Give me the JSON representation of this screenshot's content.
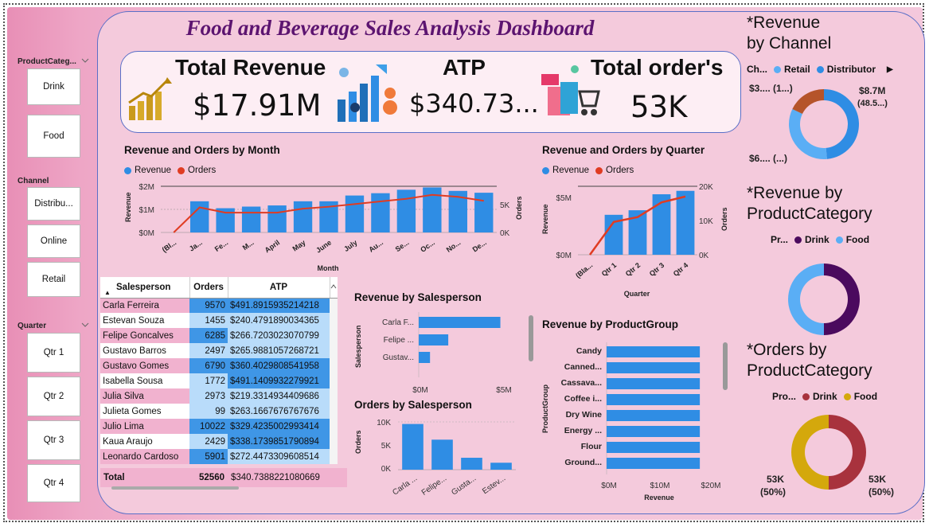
{
  "title": "Food and Beverage Sales Analysis Dashboard",
  "kpis": {
    "revenue_label": "Total Revenue",
    "revenue_value": "$17.91M",
    "atp_label": "ATP",
    "atp_value": "$340.73...",
    "orders_label": "Total order's",
    "orders_value": "53K"
  },
  "slicers": {
    "product_category": {
      "title": "ProductCateg...",
      "items": [
        "Drink",
        "Food"
      ]
    },
    "channel": {
      "title": "Channel",
      "items": [
        "Distribu...",
        "Online",
        "Retail"
      ]
    },
    "quarter": {
      "title": "Quarter",
      "items": [
        "Qtr 1",
        "Qtr 2",
        "Qtr 3",
        "Qtr 4"
      ]
    }
  },
  "month_chart": {
    "title": "Revenue and Orders by Month",
    "legend": [
      "Revenue",
      "Orders"
    ],
    "xlabel": "Month",
    "ylabel_left": "Revenue",
    "ylabel_right": "Orders",
    "left_ticks": [
      "$2M",
      "$1M",
      "$0M"
    ],
    "right_ticks": [
      "5K",
      "0K"
    ]
  },
  "quarter_chart": {
    "title": "Revenue and Orders by Quarter",
    "legend": [
      "Revenue",
      "Orders"
    ],
    "xlabel": "Quarter",
    "ylabel_left": "Revenue",
    "ylabel_right": "Orders",
    "left_ticks": [
      "$5M",
      "$0M"
    ],
    "right_ticks": [
      "20K",
      "10K",
      "0K"
    ]
  },
  "table": {
    "headers": [
      "Salesperson",
      "Orders",
      "ATP"
    ],
    "rows": [
      [
        "Carla Ferreira",
        "9570",
        "$491.8915935214218"
      ],
      [
        "Estevan Souza",
        "1455",
        "$240.4791890034365"
      ],
      [
        "Felipe Goncalves",
        "6285",
        "$266.7203023070799"
      ],
      [
        "Gustavo Barros",
        "2497",
        "$265.9881057268721"
      ],
      [
        "Gustavo Gomes",
        "6790",
        "$360.4029808541958"
      ],
      [
        "Isabella Sousa",
        "1772",
        "$491.1409932279921"
      ],
      [
        "Julia Silva",
        "2973",
        "$219.3314934409686"
      ],
      [
        "Julieta Gomes",
        "99",
        "$263.1667676767676"
      ],
      [
        "Julio Lima",
        "10022",
        "$329.4235002993414"
      ],
      [
        "Kaua Araujo",
        "2429",
        "$338.1739851790894"
      ],
      [
        "Leonardo Cardoso",
        "5901",
        "$272.4473309608514"
      ]
    ],
    "total": [
      "Total",
      "52560",
      "$340.7388221080669"
    ]
  },
  "rev_salesperson": {
    "title": "Revenue by Salesperson",
    "ylabel": "Salesperson",
    "categories": [
      "Carla F...",
      "Felipe ...",
      "Gustav..."
    ],
    "ticks": [
      "$0M",
      "$5M"
    ]
  },
  "orders_salesperson": {
    "title": "Orders by Salesperson",
    "ylabel": "Orders",
    "categories": [
      "Carla ...",
      "Felipe...",
      "Gusta...",
      "Estev..."
    ],
    "ticks": [
      "10K",
      "5K",
      "0K"
    ]
  },
  "product_group": {
    "title": "Revenue by ProductGroup",
    "ylabel": "ProductGroup",
    "xlabel": "Revenue",
    "categories": [
      "Candy",
      "Canned...",
      "Cassava...",
      "Coffee i...",
      "Dry Wine",
      "Energy ...",
      "Flour",
      "Ground..."
    ],
    "ticks": [
      "$0M",
      "$10M",
      "$20M"
    ]
  },
  "channel_donut": {
    "title": "*Revenue by Channel",
    "legend_prefix": "Ch...",
    "legend": [
      "Retail",
      "Distributor"
    ],
    "labels": [
      "$8.7M",
      "(48.5...)",
      "$3.... (1...)",
      "$6.... (...)"
    ]
  },
  "category_donut": {
    "title": "*Revenue by ProductCategory",
    "legend_prefix": "Pr...",
    "legend": [
      "Drink",
      "Food"
    ]
  },
  "orders_donut": {
    "title": "*Orders by ProductCategory",
    "legend_prefix": "Pro...",
    "legend": [
      "Drink",
      "Food"
    ],
    "labels": [
      "53K",
      "(50%)",
      "53K",
      "(50%)"
    ]
  },
  "colors": {
    "revenue": "#2f8de4",
    "orders": "#e03c22",
    "drink": "#4b0a5e",
    "food": "#5aaef5",
    "drink_orders": "#a8323d",
    "food_orders": "#d4a80c",
    "retail_slice": "#b5542a"
  },
  "chart_data": [
    {
      "type": "bar",
      "title": "Revenue and Orders by Month",
      "categories": [
        "(Bl...",
        "Ja...",
        "Fe...",
        "M...",
        "April",
        "May",
        "June",
        "July",
        "Au...",
        "Se...",
        "Oc...",
        "No...",
        "De..."
      ],
      "series": [
        {
          "name": "Revenue",
          "values": [
            0,
            1.35,
            1.05,
            1.12,
            1.17,
            1.35,
            1.35,
            1.6,
            1.7,
            1.85,
            1.95,
            1.8,
            1.72
          ]
        },
        {
          "name": "Orders",
          "values": [
            0,
            3800,
            3000,
            3000,
            3000,
            3600,
            3900,
            4300,
            4700,
            5100,
            5700,
            5400,
            4800
          ]
        }
      ],
      "xlabel": "Month",
      "ylabel": "Revenue",
      "ylim": [
        0,
        2
      ],
      "y2lim": [
        0,
        7000
      ]
    },
    {
      "type": "bar",
      "title": "Revenue and Orders by Quarter",
      "categories": [
        "(Bla...",
        "Qtr 1",
        "Qtr 2",
        "Qtr 3",
        "Qtr 4"
      ],
      "series": [
        {
          "name": "Revenue",
          "values": [
            0,
            3.5,
            3.9,
            5.3,
            5.6
          ]
        },
        {
          "name": "Orders",
          "values": [
            0,
            9600,
            11000,
            15300,
            17000
          ]
        }
      ],
      "xlabel": "Quarter",
      "ylabel": "Revenue",
      "ylim": [
        0,
        6
      ],
      "y2lim": [
        0,
        20000
      ]
    },
    {
      "type": "bar",
      "title": "Revenue by Salesperson",
      "categories": [
        "Carla F...",
        "Felipe ...",
        "Gustav..."
      ],
      "values": [
        4.7,
        1.7,
        0.65
      ],
      "xlim": [
        0,
        5.5
      ]
    },
    {
      "type": "bar",
      "title": "Orders by Salesperson",
      "categories": [
        "Carla ...",
        "Felipe...",
        "Gusta...",
        "Estev..."
      ],
      "values": [
        9570,
        6285,
        2497,
        1455
      ],
      "ylim": [
        0,
        10000
      ]
    },
    {
      "type": "bar",
      "title": "Revenue by ProductGroup",
      "categories": [
        "Candy",
        "Canned...",
        "Cassava...",
        "Coffee i...",
        "Dry Wine",
        "Energy ...",
        "Flour",
        "Ground..."
      ],
      "values": [
        18.3,
        18.3,
        18.3,
        18.3,
        18.3,
        18.3,
        18.3,
        18.3
      ],
      "xlim": [
        0,
        20
      ]
    },
    {
      "type": "pie",
      "title": "*Revenue by Channel",
      "categories": [
        "Distributor",
        "Online",
        "Retail"
      ],
      "values": [
        8.7,
        6.0,
        3.2
      ]
    },
    {
      "type": "pie",
      "title": "*Revenue by ProductCategory",
      "categories": [
        "Drink",
        "Food"
      ],
      "values": [
        50,
        50
      ]
    },
    {
      "type": "pie",
      "title": "*Orders by ProductCategory",
      "categories": [
        "Drink",
        "Food"
      ],
      "values": [
        50,
        50
      ]
    }
  ]
}
